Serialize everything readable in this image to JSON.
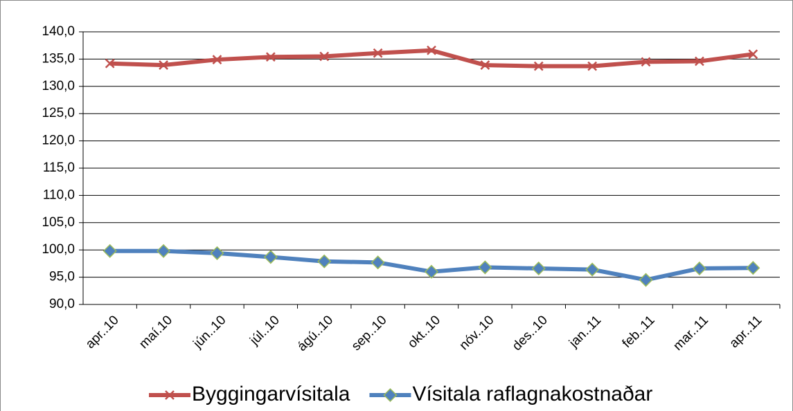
{
  "chart_data": {
    "type": "line",
    "categories": [
      "apr..10",
      "maí.10",
      "jún..10",
      "júl..10",
      "ágú..10",
      "sep..10",
      "okt..10",
      "nóv..10",
      "des..10",
      "jan..11",
      "feb..11",
      "mar..11",
      "apr..11"
    ],
    "series": [
      {
        "name": "Byggingarvísitala",
        "color": "#c0504d",
        "marker": "x",
        "values": [
          134.2,
          133.9,
          134.9,
          135.4,
          135.5,
          136.1,
          136.6,
          133.9,
          133.7,
          133.7,
          134.5,
          134.6,
          135.9
        ]
      },
      {
        "name": "Vísitala raflagnakostnaðar",
        "color": "#4f81bd",
        "marker": "diamond",
        "values": [
          99.8,
          99.8,
          99.4,
          98.7,
          97.9,
          97.7,
          96.0,
          96.8,
          96.6,
          96.4,
          94.5,
          96.6,
          96.7
        ]
      }
    ],
    "ylim": [
      90,
      140
    ],
    "yticks": [
      {
        "value": 90,
        "label": "90,0"
      },
      {
        "value": 95,
        "label": "95,0"
      },
      {
        "value": 100,
        "label": "100,0"
      },
      {
        "value": 105,
        "label": "105,0"
      },
      {
        "value": 110,
        "label": "110,0"
      },
      {
        "value": 115,
        "label": "115,0"
      },
      {
        "value": 120,
        "label": "120,0"
      },
      {
        "value": 125,
        "label": "125,0"
      },
      {
        "value": 130,
        "label": "130,0"
      },
      {
        "value": 135,
        "label": "135,0"
      },
      {
        "value": 140,
        "label": "140,0"
      }
    ],
    "grid": true,
    "legend": "bottom"
  }
}
